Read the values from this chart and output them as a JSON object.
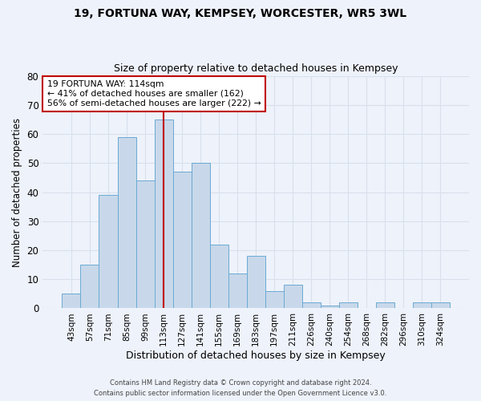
{
  "title1": "19, FORTUNA WAY, KEMPSEY, WORCESTER, WR5 3WL",
  "title2": "Size of property relative to detached houses in Kempsey",
  "xlabel": "Distribution of detached houses by size in Kempsey",
  "ylabel": "Number of detached properties",
  "categories": [
    "43sqm",
    "57sqm",
    "71sqm",
    "85sqm",
    "99sqm",
    "113sqm",
    "127sqm",
    "141sqm",
    "155sqm",
    "169sqm",
    "183sqm",
    "197sqm",
    "211sqm",
    "226sqm",
    "240sqm",
    "254sqm",
    "268sqm",
    "282sqm",
    "296sqm",
    "310sqm",
    "324sqm"
  ],
  "values": [
    5,
    15,
    39,
    59,
    44,
    65,
    47,
    50,
    22,
    12,
    18,
    6,
    8,
    2,
    1,
    2,
    0,
    2,
    0,
    2,
    2
  ],
  "bar_color": "#c8d8ea",
  "bar_edge_color": "#6aaad4",
  "grid_color": "#d8e0ec",
  "background_color": "#eef2fa",
  "vline_index": 5,
  "vline_color": "#c00000",
  "annotation_text": "19 FORTUNA WAY: 114sqm\n← 41% of detached houses are smaller (162)\n56% of semi-detached houses are larger (222) →",
  "annotation_box_color": "#ffffff",
  "annotation_box_edge_color": "#c00000",
  "ylim": [
    0,
    80
  ],
  "yticks": [
    0,
    10,
    20,
    30,
    40,
    50,
    60,
    70,
    80
  ],
  "footer1": "Contains HM Land Registry data © Crown copyright and database right 2024.",
  "footer2": "Contains public sector information licensed under the Open Government Licence v3.0."
}
